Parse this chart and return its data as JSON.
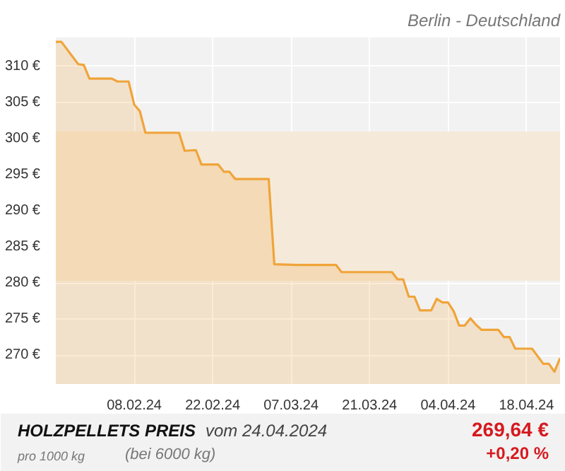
{
  "chart_data": {
    "type": "area",
    "title": "HOLZPELLETS PREIS",
    "subtitle": "Berlin - Deutschland",
    "annotations": [
      "vom 24.04.2024",
      "pro 1000 kg",
      "(bei 6000 kg)",
      "269,64 €",
      "+0,20 %"
    ],
    "x": [
      "2024-01-25",
      "2024-01-26",
      "2024-01-29",
      "2024-01-30",
      "2024-01-31",
      "2024-02-04",
      "2024-02-05",
      "2024-02-07",
      "2024-02-08",
      "2024-02-09",
      "2024-02-10",
      "2024-02-16",
      "2024-02-17",
      "2024-02-19",
      "2024-02-20",
      "2024-02-23",
      "2024-02-24",
      "2024-02-25",
      "2024-02-26",
      "2024-03-03",
      "2024-03-04",
      "2024-03-08",
      "2024-03-15",
      "2024-03-16",
      "2024-03-25",
      "2024-03-26",
      "2024-03-27",
      "2024-03-28",
      "2024-03-29",
      "2024-03-30",
      "2024-04-01",
      "2024-04-02",
      "2024-04-03",
      "2024-04-04",
      "2024-04-05",
      "2024-04-06",
      "2024-04-07",
      "2024-04-08",
      "2024-04-09",
      "2024-04-10",
      "2024-04-13",
      "2024-04-14",
      "2024-04-15",
      "2024-04-16",
      "2024-04-19",
      "2024-04-21",
      "2024-04-22",
      "2024-04-23",
      "2024-04-24"
    ],
    "series": [
      {
        "color": "#f0a43a",
        "values": [
          313.4,
          313.4,
          310.3,
          310.2,
          308.3,
          308.3,
          307.9,
          307.9,
          304.7,
          303.8,
          300.8,
          300.8,
          298.3,
          298.4,
          296.4,
          296.4,
          295.4,
          295.4,
          294.4,
          294.4,
          282.6,
          282.5,
          282.5,
          281.5,
          281.5,
          280.5,
          280.5,
          278.1,
          278.1,
          276.2,
          276.2,
          277.8,
          277.3,
          277.3,
          276.1,
          274.1,
          274.1,
          275.1,
          274.2,
          273.5,
          273.5,
          272.5,
          272.5,
          270.9,
          270.9,
          268.8,
          268.8,
          267.7,
          269.6
        ]
      }
    ],
    "xlim": [
      "2024-01-25",
      "2024-04-24"
    ],
    "ylim": [
      266,
      314
    ],
    "xticks": [
      {
        "value": "2024-02-08",
        "label": "08.02.24"
      },
      {
        "value": "2024-02-22",
        "label": "22.02.24"
      },
      {
        "value": "2024-03-07",
        "label": "07.03.24"
      },
      {
        "value": "2024-03-21",
        "label": "21.03.24"
      },
      {
        "value": "2024-04-04",
        "label": "04.04.24"
      },
      {
        "value": "2024-04-18",
        "label": "18.04.24"
      }
    ],
    "yticks": [
      {
        "value": 270,
        "label": "270 €"
      },
      {
        "value": 275,
        "label": "275 €"
      },
      {
        "value": 280,
        "label": "280 €"
      },
      {
        "value": 285,
        "label": "285 €"
      },
      {
        "value": 290,
        "label": "290 €"
      },
      {
        "value": 295,
        "label": "295 €"
      },
      {
        "value": 300,
        "label": "300 €"
      },
      {
        "value": 305,
        "label": "305 €"
      },
      {
        "value": 310,
        "label": "310 €"
      }
    ],
    "bands": [
      {
        "axis": "y",
        "from": 280.3,
        "to": 301,
        "color": "#f5ead9"
      }
    ],
    "grid": true
  }
}
